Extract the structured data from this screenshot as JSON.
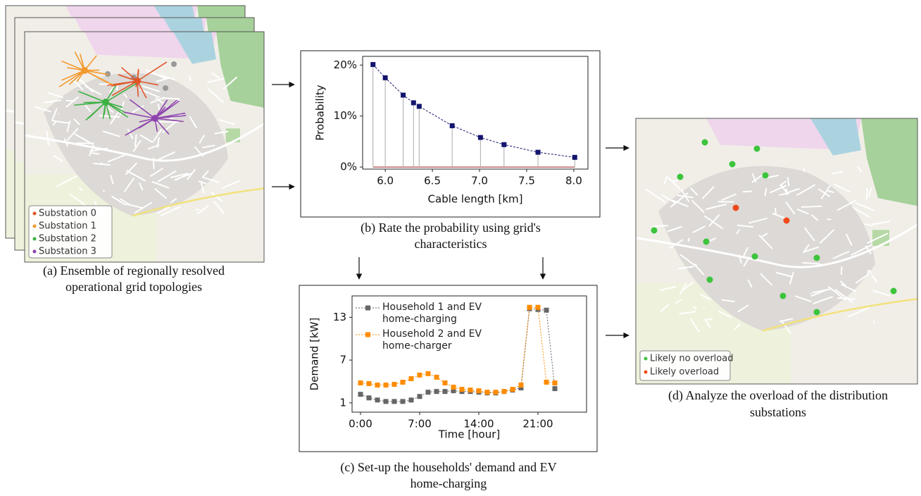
{
  "chart_data": [
    {
      "type": "scatter",
      "x_label": "Cable length [km]",
      "y_label": "Probability",
      "x": [
        5.87,
        6.0,
        6.19,
        6.3,
        6.36,
        6.71,
        7.01,
        7.26,
        7.62,
        8.01
      ],
      "values": [
        20.1,
        17.5,
        14.1,
        12.6,
        11.9,
        8.1,
        5.8,
        4.4,
        2.9,
        1.9
      ],
      "color": "#14146e",
      "stems": true,
      "line_style": "dashed",
      "xlim": [
        5.76,
        8.15
      ],
      "ylim": [
        -0.4,
        21.7
      ],
      "xticks": [
        {
          "value": 6,
          "label": "6.0"
        },
        6.5,
        {
          "value": 7,
          "label": "7.0"
        },
        7.5,
        {
          "value": 8,
          "label": "8.0"
        }
      ],
      "yticks": [
        {
          "value": 0,
          "label": "0%"
        },
        {
          "value": 10,
          "label": "10%"
        },
        {
          "value": 20,
          "label": "20%"
        }
      ]
    },
    {
      "type": "line",
      "x_label": "Time [hour]",
      "y_label": "Demand [kW]",
      "x": [
        0,
        1,
        2,
        3,
        4,
        5,
        6,
        7,
        8,
        9,
        10,
        11,
        12,
        13,
        14,
        15,
        16,
        17,
        18,
        19,
        20,
        21,
        22,
        23
      ],
      "series": [
        {
          "name": "Household 1 and EV home-charging",
          "color": "#666666",
          "values": [
            2.2,
            1.7,
            1.4,
            1.2,
            1.2,
            1.2,
            1.4,
            1.9,
            2.5,
            2.6,
            2.6,
            2.7,
            2.6,
            2.6,
            2.5,
            2.4,
            2.4,
            2.6,
            2.8,
            3.1,
            14.2,
            14.1,
            14.0,
            3.0
          ]
        },
        {
          "name": "Household 2 and EV home-charger",
          "color": "#ff8c00",
          "values": [
            3.8,
            3.7,
            3.5,
            3.5,
            3.6,
            3.9,
            4.4,
            4.9,
            5.1,
            4.6,
            3.8,
            3.2,
            2.9,
            2.8,
            2.7,
            2.5,
            2.5,
            2.6,
            2.9,
            3.5,
            14.4,
            14.4,
            3.9,
            3.8
          ]
        }
      ],
      "xlim": [
        -1,
        26.75
      ],
      "ylim": [
        -0.3,
        16
      ],
      "xticks": [
        {
          "value": 0,
          "label": "0:00"
        },
        {
          "value": 7,
          "label": "7:00"
        },
        {
          "value": 14,
          "label": "14:00"
        },
        {
          "value": 21,
          "label": "21:00"
        }
      ],
      "yticks": [
        1,
        7,
        13
      ],
      "legend": "upper left"
    }
  ],
  "maps": {
    "a": {
      "legend": [
        {
          "name": "Substation 0",
          "color": "#e0552a"
        },
        {
          "name": "Substation 1",
          "color": "#f39a2e"
        },
        {
          "name": "Substation 2",
          "color": "#3cb043"
        },
        {
          "name": "Substation 3",
          "color": "#8e44ad"
        }
      ]
    },
    "d": {
      "legend": [
        {
          "name": "Likely no overload",
          "color": "#3cc43c"
        },
        {
          "name": "Likely overload",
          "color": "#f04a1a"
        }
      ]
    }
  },
  "captions": {
    "a": [
      "(a) Ensemble of  regionally resolved",
      "operational grid topologies"
    ],
    "b": [
      "(b) Rate the probability using grid's",
      "characteristics"
    ],
    "c": [
      "(c) Set-up the households' demand and EV",
      "home-charging"
    ],
    "d": [
      "(d) Analyze the overload of the distribution",
      "substations"
    ]
  }
}
